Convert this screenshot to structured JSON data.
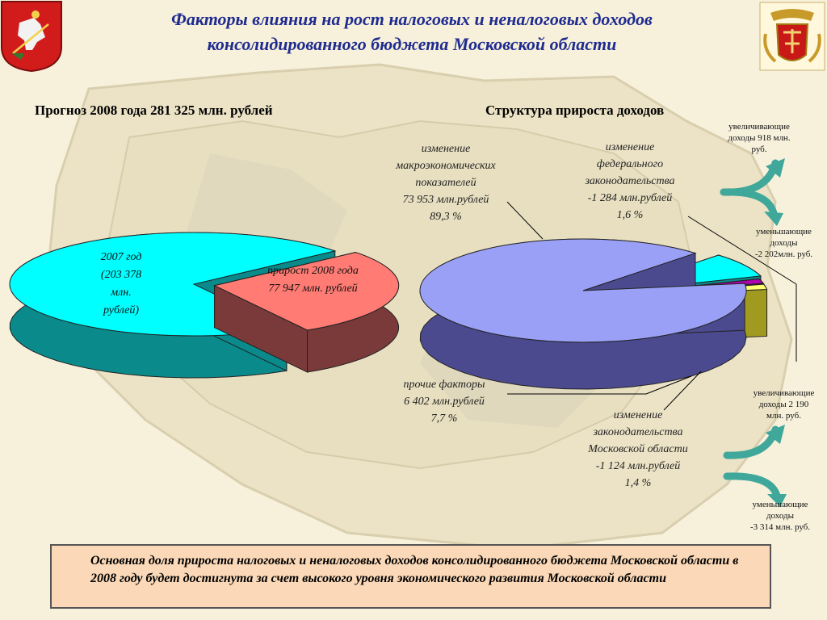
{
  "title": {
    "line1": "Факторы влияния на рост налоговых и неналоговых доходов",
    "line2": "консолидированного бюджета Московской области"
  },
  "colors": {
    "title": "#1f2b8f",
    "cyan": "#00ffff",
    "cyan_side": "#0a8a8a",
    "salmon": "#ff7b74",
    "salmon_side": "#7a3a3a",
    "lavender": "#9aa0f5",
    "lavender_side": "#4b4a8e",
    "magenta": "#b000b0",
    "yellow": "#ffff70",
    "olive": "#a19a20",
    "conclusion_bg": "#fbd9b8",
    "arrow": "#3fa89a"
  },
  "left_heading": "Прогноз 2008 года 281 325 млн. рублей",
  "right_heading": "Структура прироста доходов",
  "left_chart_labels": {
    "base": [
      "2007 год",
      "(203 378",
      "млн.",
      "рублей)"
    ],
    "growth": [
      "прирост 2008 года",
      "77 947 млн. рублей"
    ]
  },
  "right_chart_labels": {
    "macro": [
      "изменение",
      "макроэкономических",
      "показателей",
      "73 953 млн.рублей",
      "89,3 %"
    ],
    "federal": [
      "изменение",
      "федерального",
      "законодательства",
      "-1 284 млн.рублей",
      "1,6 %"
    ],
    "other": [
      "прочие факторы",
      "6 402 млн.рублей",
      "7,7 %"
    ],
    "regional": [
      "изменение",
      "законодательства",
      "Московской области",
      "-1 124 млн.рублей",
      "1,4 %"
    ]
  },
  "side_notes": {
    "fed_increase": [
      "увеличивающие",
      "доходы 918 млн.",
      "руб."
    ],
    "fed_decrease": [
      "уменьшающие",
      "доходы",
      "-2 202млн. руб."
    ],
    "reg_increase": [
      "увеличивающие",
      "доходы 2 190",
      "млн. руб."
    ],
    "reg_decrease": [
      "уменьшающие",
      "доходы",
      "-3 314 млн. руб."
    ]
  },
  "conclusion": "Основная доля прироста налоговых и неналоговых доходов консолидированного бюджета Московской области в 2008 году будет достигнута за счет высокого уровня экономического развития Московской области",
  "chart_data": [
    {
      "type": "pie",
      "title": "Прогноз 2008 года 281 325 млн. рублей",
      "categories": [
        "2007 год",
        "прирост 2008 года"
      ],
      "values": [
        203378,
        77947
      ],
      "units": "млн. рублей",
      "exploded": [
        false,
        true
      ],
      "colors": [
        "#00ffff",
        "#ff7b74"
      ]
    },
    {
      "type": "pie",
      "title": "Структура прироста доходов",
      "categories": [
        "изменение макроэкономических показателей",
        "прочие факторы",
        "изменение законодательства Московской области",
        "изменение федерального законодательства"
      ],
      "values": [
        73953,
        6402,
        -1124,
        -1284
      ],
      "shares_percent": [
        89.3,
        7.7,
        1.4,
        1.6
      ],
      "units": "млн. рублей",
      "colors": [
        "#9aa0f5",
        "#00ffff",
        "#b000b0",
        "#ffff70"
      ]
    }
  ]
}
